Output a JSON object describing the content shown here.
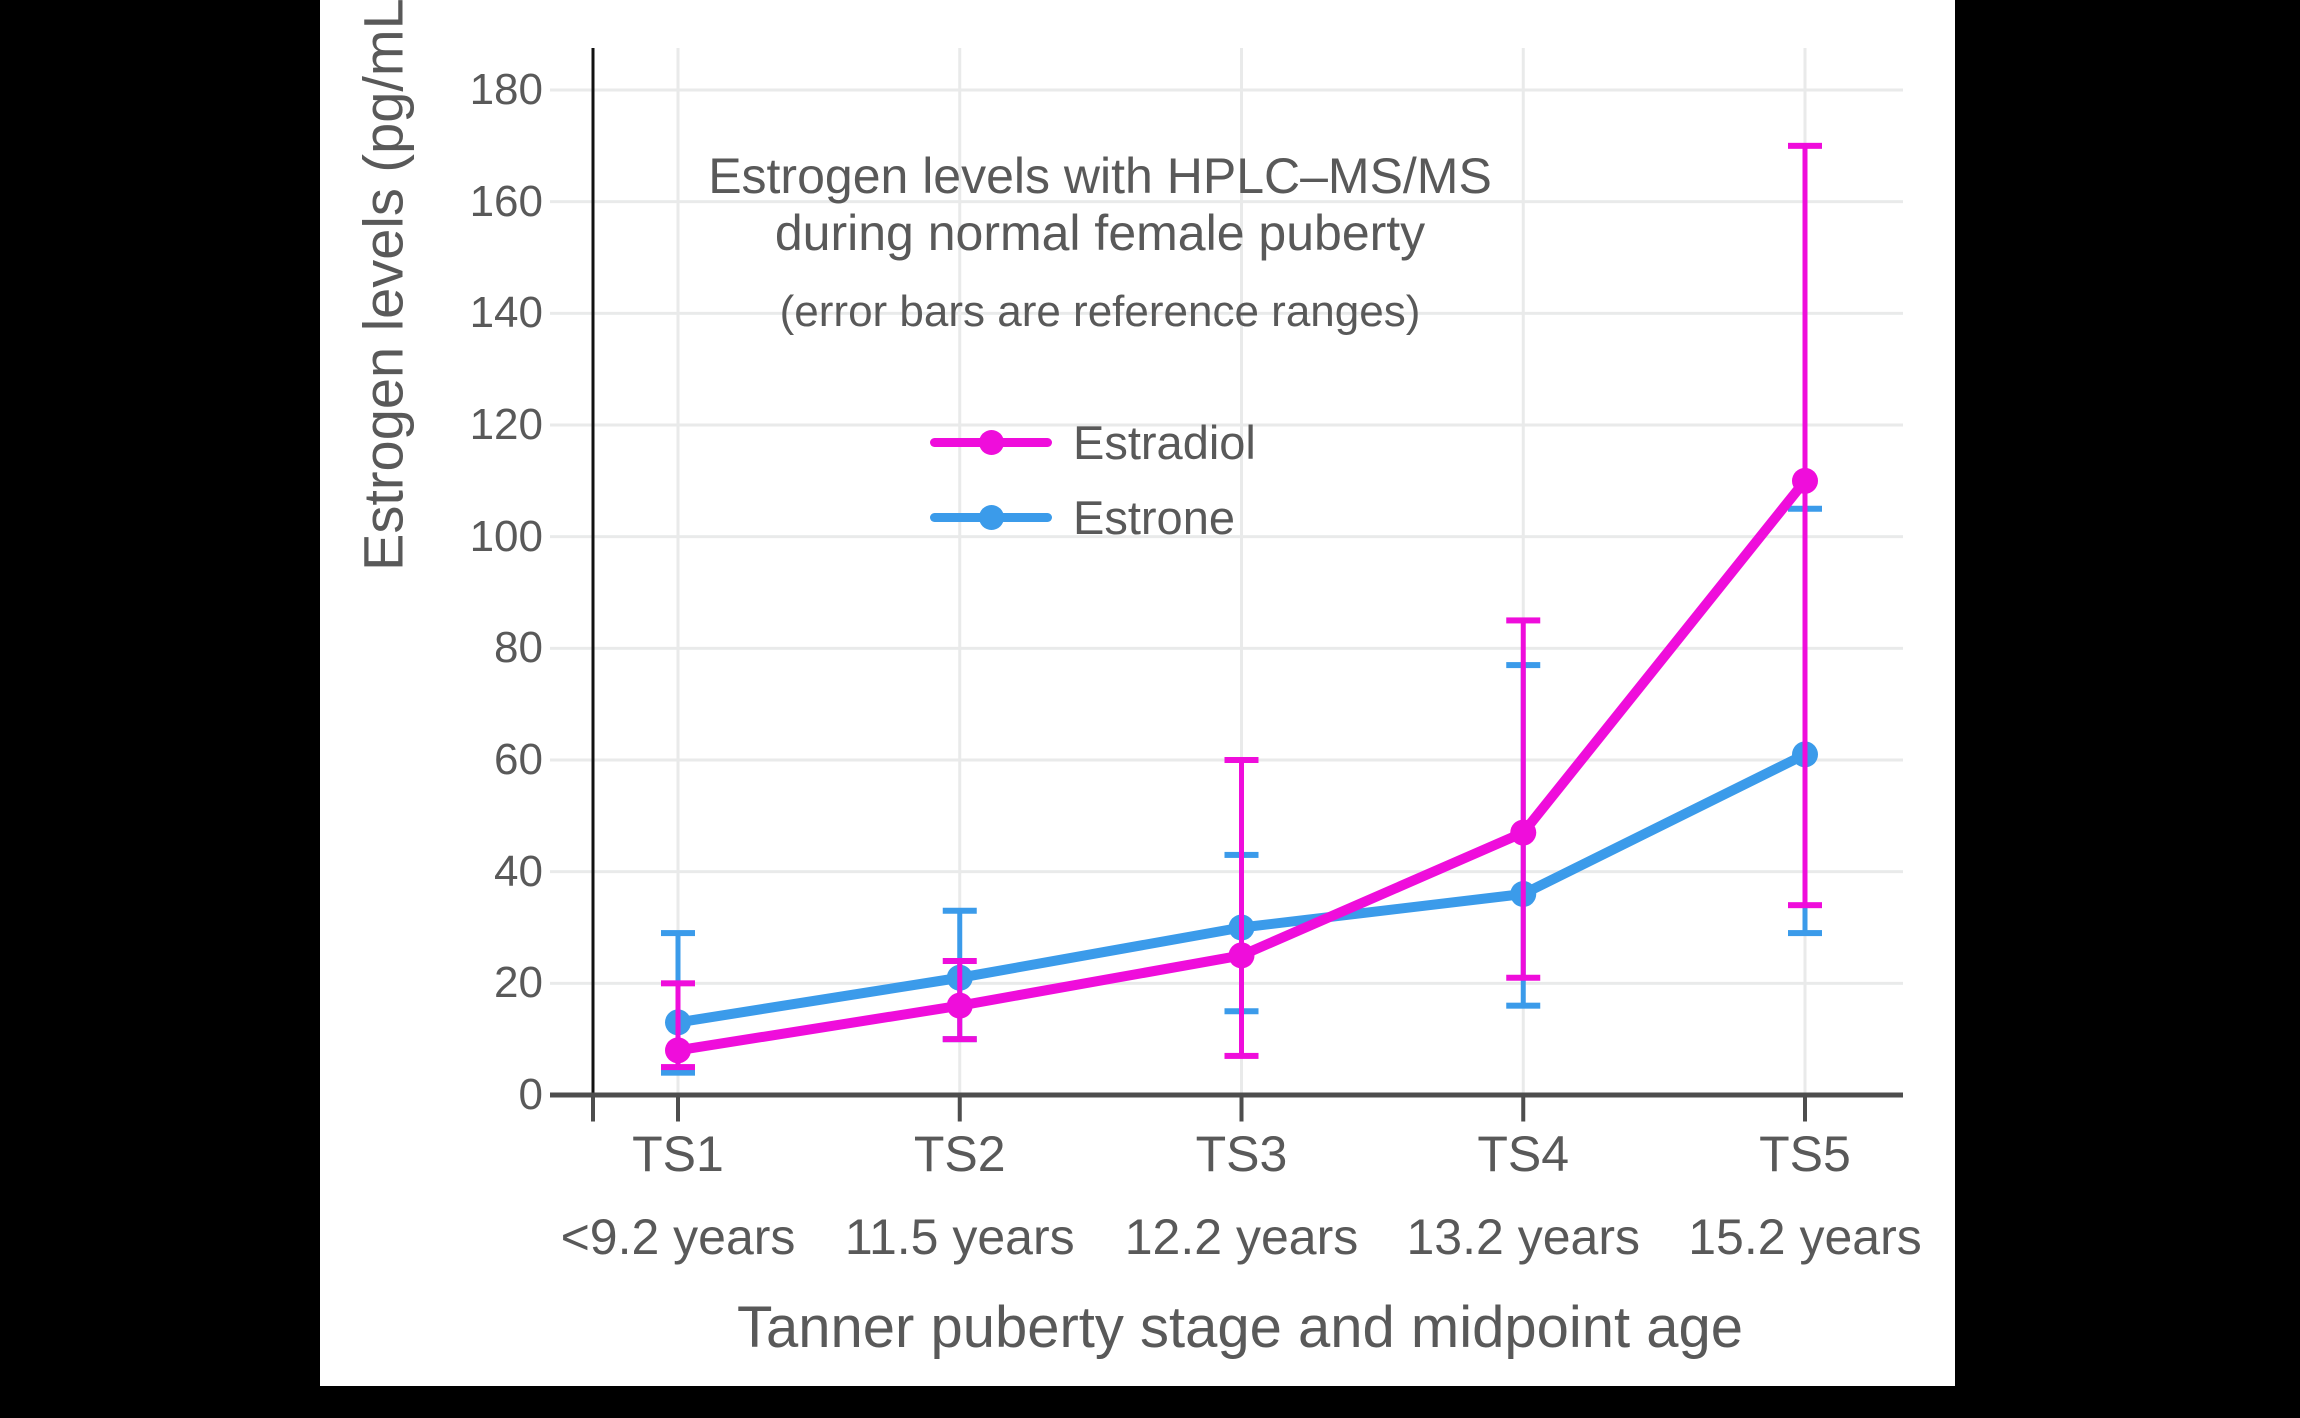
{
  "frame": {
    "background_color": "#000000",
    "panel_color": "#ffffff"
  },
  "chart_data": {
    "type": "line",
    "title_line1": "Estrogen levels with HPLC–MS/MS",
    "title_line2": "during normal female puberty",
    "subtitle": "(error bars are reference ranges)",
    "xlabel": "Tanner puberty stage and midpoint age",
    "ylabel": "Estrogen levels (pg/mL)",
    "unit": "pg/mL",
    "ylim": [
      0,
      180
    ],
    "yticks": [
      0,
      20,
      40,
      60,
      80,
      100,
      120,
      140,
      160,
      180
    ],
    "categories": [
      "TS1",
      "TS2",
      "TS3",
      "TS4",
      "TS5"
    ],
    "category_sublabels": [
      "<9.2 years",
      "11.5 years",
      "12.2 years",
      "13.2 years",
      "15.2 years"
    ],
    "grid": true,
    "legend_position": "inside-upper-center",
    "series": [
      {
        "name": "Estradiol",
        "color": "#EF0DDB",
        "values": [
          8,
          16,
          25,
          47,
          110
        ],
        "error_low": [
          5,
          10,
          7,
          21,
          34
        ],
        "error_high": [
          20,
          24,
          60,
          85,
          170
        ]
      },
      {
        "name": "Estrone",
        "color": "#3B9BEA",
        "values": [
          13,
          21,
          30,
          36,
          61
        ],
        "error_low": [
          4,
          10,
          15,
          16,
          29
        ],
        "error_high": [
          29,
          33,
          43,
          77,
          105
        ]
      }
    ],
    "style": {
      "text_color": "#595959",
      "gridline_color": "#E9EAEA",
      "x_axis_color": "#4D4D4D",
      "y_axis_color": "#111111"
    }
  }
}
